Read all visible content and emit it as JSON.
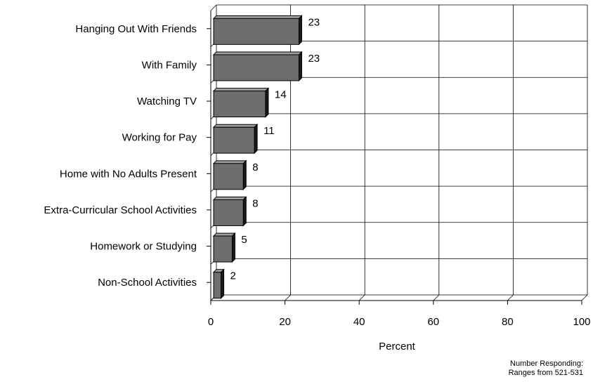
{
  "chart_data": {
    "type": "bar",
    "orientation": "horizontal",
    "three_d": true,
    "categories": [
      "Hanging Out With Friends",
      "With Family",
      "Watching TV",
      "Working for Pay",
      "Home with No Adults Present",
      "Extra-Curricular School Activities",
      "Homework or Studying",
      "Non-School Activities"
    ],
    "values": [
      23,
      23,
      14,
      11,
      8,
      8,
      5,
      2
    ],
    "data_labels": [
      "23",
      "23",
      "14",
      "11",
      "8",
      "8",
      "5",
      "2"
    ],
    "xlabel": "Percent",
    "xlim": [
      0,
      100
    ],
    "x_ticks": [
      "0",
      "20",
      "40",
      "60",
      "80",
      "100"
    ],
    "grid": true,
    "legend": "none",
    "bar_color": "#6e6e6e"
  },
  "note": {
    "line1": "Number Responding:",
    "line2": "Ranges from 521-531"
  }
}
